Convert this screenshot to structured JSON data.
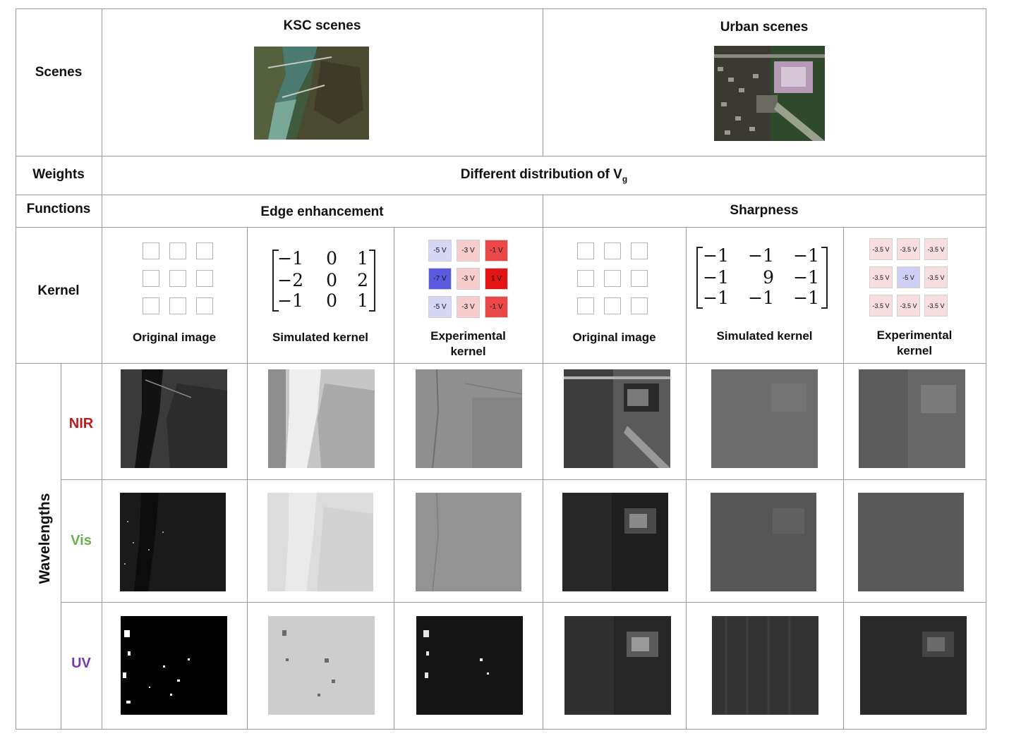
{
  "rows": {
    "scenes": "Scenes",
    "weights": "Weights",
    "functions": "Functions",
    "kernel": "Kernel",
    "wavelengths": "Wavelengths"
  },
  "scenes": {
    "ksc": "KSC scenes",
    "urban": "Urban scenes"
  },
  "weights_text": "Different distribution of V",
  "weights_sub": "g",
  "functions": {
    "edge": "Edge enhancement",
    "sharp": "Sharpness"
  },
  "kernel_cols": {
    "original": "Original image",
    "simulated": "Simulated kernel",
    "experimental_1": "Experimental",
    "experimental_2": "kernel"
  },
  "edge_matrix": [
    [
      "−1",
      "0",
      "1"
    ],
    [
      "−2",
      "0",
      "2"
    ],
    [
      "−1",
      "0",
      "1"
    ]
  ],
  "sharp_matrix": [
    [
      "−1",
      "−1",
      "−1"
    ],
    [
      "−1",
      "9",
      "−1"
    ],
    [
      "−1",
      "−1",
      "−1"
    ]
  ],
  "edge_exp": [
    [
      {
        "t": "-5 V",
        "c": "#d6d6f6"
      },
      {
        "t": "-3 V",
        "c": "#f6cccc"
      },
      {
        "t": "-1 V",
        "c": "#ea4848"
      }
    ],
    [
      {
        "t": "-7 V",
        "c": "#5a5adf"
      },
      {
        "t": "-3 V",
        "c": "#f6cccc"
      },
      {
        "t": "1 V",
        "c": "#e31414"
      }
    ],
    [
      {
        "t": "-5 V",
        "c": "#d6d6f6"
      },
      {
        "t": "-3 V",
        "c": "#f6cccc"
      },
      {
        "t": "-1 V",
        "c": "#ea4848"
      }
    ]
  ],
  "sharp_exp": [
    [
      {
        "t": "-3.5 V",
        "c": "#f8dede"
      },
      {
        "t": "-3.5 V",
        "c": "#f8dede"
      },
      {
        "t": "-3.5 V",
        "c": "#f8dede"
      }
    ],
    [
      {
        "t": "-3.5 V",
        "c": "#f8dede"
      },
      {
        "t": "-5 V",
        "c": "#cfcff5"
      },
      {
        "t": "-3.5 V",
        "c": "#f8dede"
      }
    ],
    [
      {
        "t": "-3.5 V",
        "c": "#f8dede"
      },
      {
        "t": "-3.5 V",
        "c": "#f8dede"
      },
      {
        "t": "-3.5 V",
        "c": "#f8dede"
      }
    ]
  ],
  "wavelengths": [
    {
      "label": "NIR",
      "color": "#c01a1a"
    },
    {
      "label": "Vis",
      "color": "#6ab04c"
    },
    {
      "label": "UV",
      "color": "#7a3aa8"
    }
  ]
}
